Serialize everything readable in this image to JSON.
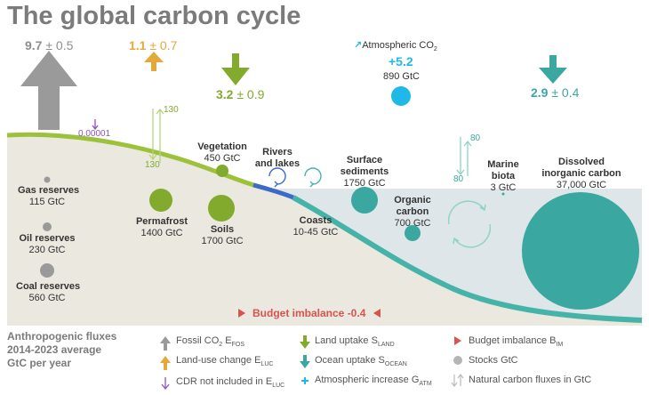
{
  "title": "The global carbon cycle",
  "fluxes": {
    "fossil": {
      "value": "9.7",
      "uncertainty": "± 0.5"
    },
    "land_use": {
      "value": "1.1",
      "uncertainty": "± 0.7"
    },
    "land_uptake": {
      "value": "3.2",
      "uncertainty": "± 0.9"
    },
    "ocean_uptake": {
      "value": "2.9",
      "uncertainty": "± 0.4"
    },
    "atmosphere": {
      "label": "Atmospheric CO",
      "label_sub": "2",
      "value": "+5.2",
      "stock": "890 GtC"
    },
    "cdr": "0.00001",
    "natural_land": {
      "up": "130",
      "down": "130"
    },
    "natural_ocean": {
      "up": "80",
      "down": "80"
    }
  },
  "stocks": {
    "gas": {
      "name": "Gas reserves",
      "value": "115 GtC"
    },
    "oil": {
      "name": "Oil reserves",
      "value": "230 GtC"
    },
    "coal": {
      "name": "Coal reserves",
      "value": "560 GtC"
    },
    "permafrost": {
      "name": "Permafrost",
      "value": "1400 GtC"
    },
    "soils": {
      "name": "Soils",
      "value": "1700 GtC"
    },
    "vegetation": {
      "name": "Vegetation",
      "value": "450 GtC"
    },
    "rivers": {
      "name1": "Rivers",
      "name2": "and lakes"
    },
    "coasts": {
      "name": "Coasts",
      "value": "10-45 GtC"
    },
    "sediments": {
      "name1": "Surface",
      "name2": "sediments",
      "value": "1750 GtC"
    },
    "organic": {
      "name1": "Organic",
      "name2": "carbon",
      "value": "700 GtC"
    },
    "biota": {
      "name1": "Marine",
      "name2": "biota",
      "value": "3 GtC"
    },
    "dic": {
      "name1": "Dissolved",
      "name2": "inorganic carbon",
      "value": "37,000 GtC"
    }
  },
  "budget": "Budget imbalance -0.4",
  "footer": {
    "line1": "Anthropogenic fluxes",
    "line2": "2014-2023 average",
    "line3": "GtC per year"
  },
  "legend": [
    {
      "label": "Fossil CO",
      "sub1": "2",
      "mid": " E",
      "sub2": "FOS",
      "icon": "grey-up-arrow-icon",
      "color": "#9a9a9a"
    },
    {
      "label": "Land-use change E",
      "sub2": "LUC",
      "icon": "orange-up-arrow-icon",
      "color": "#e3a93b"
    },
    {
      "label": "CDR not included in E",
      "sub2": "LUC",
      "icon": "purple-down-arrow-icon",
      "color": "#8a55bd"
    },
    {
      "label": "Land uptake S",
      "sub2": "LAND",
      "icon": "green-down-arrow-icon",
      "color": "#82aa2d"
    },
    {
      "label": "Ocean uptake S",
      "sub2": "OCEAN",
      "icon": "teal-down-arrow-icon",
      "color": "#3aa8a0"
    },
    {
      "label": "Atmospheric increase G",
      "sub2": "ATM",
      "icon": "cyan-plus-icon",
      "color": "#1fb8e8"
    },
    {
      "label": "Budget imbalance B",
      "sub2": "IM",
      "icon": "red-triangle-icon",
      "color": "#d9534f"
    },
    {
      "label": "Stocks GtC",
      "icon": "grey-circle-icon",
      "color": "#b5b5b5"
    },
    {
      "label": "Natural carbon fluxes in GtC",
      "icon": "thin-arrows-icon",
      "color": "#bbbbbb"
    }
  ]
}
